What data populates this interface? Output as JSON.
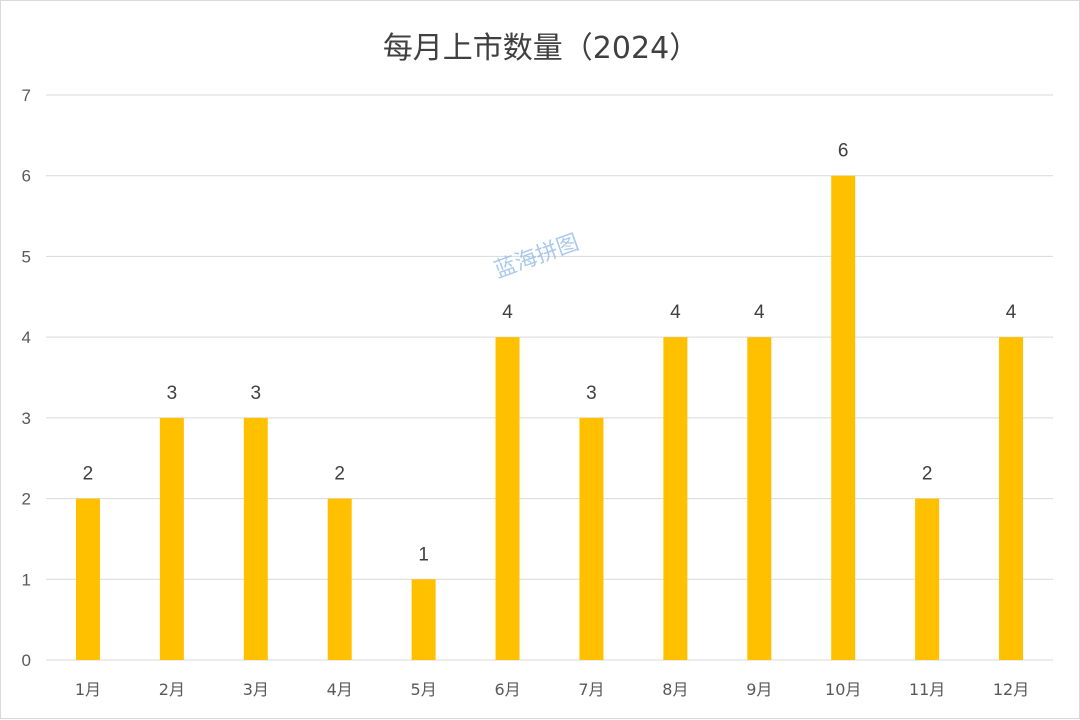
{
  "chart_data": {
    "type": "bar",
    "title": "每月上市数量（2024）",
    "categories": [
      "1月",
      "2月",
      "3月",
      "4月",
      "5月",
      "6月",
      "7月",
      "8月",
      "9月",
      "10月",
      "11月",
      "12月"
    ],
    "values": [
      2,
      3,
      3,
      2,
      1,
      4,
      3,
      4,
      4,
      6,
      2,
      4
    ],
    "ylim": [
      0,
      7
    ],
    "yticks": [
      0,
      1,
      2,
      3,
      4,
      5,
      6,
      7
    ],
    "grid": true,
    "data_labels": true,
    "bar_color": "#FFC000",
    "grid_color": "#d9d9d9",
    "xlabel": "",
    "ylabel": ""
  },
  "watermark": "蓝海拼图"
}
